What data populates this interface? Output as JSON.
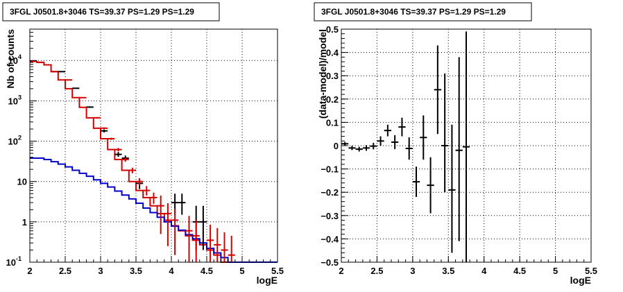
{
  "chart_data": [
    {
      "type": "line",
      "title": "3FGL J0501.8+3046 TS=39.37 PS=1.29 PS=1.29",
      "xlabel": "logE",
      "ylabel": "Nb of counts",
      "xlim": [
        2,
        5.5
      ],
      "ylim": [
        0.1,
        60000
      ],
      "yscale": "log",
      "grid": true,
      "x_ticks": [
        "2",
        "2.5",
        "3",
        "3.5",
        "4",
        "4.5",
        "5",
        "5.5"
      ],
      "y_ticks": [
        {
          "base": "10",
          "exp": "-1"
        },
        {
          "base": "1",
          "exp": ""
        },
        {
          "base": "10",
          "exp": ""
        },
        {
          "base": "10",
          "exp": "2"
        },
        {
          "base": "10",
          "exp": "3"
        },
        {
          "base": "10",
          "exp": "4"
        }
      ],
      "bin_edges": [
        2,
        2.1,
        2.2,
        2.3,
        2.4,
        2.5,
        2.6,
        2.7,
        2.8,
        2.9,
        3,
        3.1,
        3.2,
        3.3,
        3.4,
        3.5,
        3.6,
        3.7,
        3.8,
        3.9,
        4,
        4.1,
        4.2,
        4.3,
        4.4,
        4.5,
        4.6,
        4.7,
        4.8,
        4.9,
        5,
        5.1,
        5.2,
        5.3,
        5.4,
        5.5
      ],
      "series": [
        {
          "kind": "histogram",
          "color": "#d40000",
          "values": [
            9500,
            9000,
            7800,
            5300,
            3300,
            2000,
            1200,
            690,
            380,
            210,
            115,
            62,
            35,
            19,
            10,
            6,
            4,
            2.5,
            1.6,
            1.1,
            0.8,
            0.6,
            0.45,
            0.35,
            0.27,
            0.2,
            0.15,
            0.1,
            0.1,
            0.1,
            0.1,
            0.1,
            0.1,
            0.1,
            0.1
          ]
        },
        {
          "kind": "histogram",
          "color": "#0000cc",
          "values": [
            38,
            38,
            35,
            31,
            27,
            23,
            19,
            16,
            13.5,
            11,
            9,
            7.3,
            5.8,
            4.6,
            3.7,
            2.9,
            2.2,
            1.7,
            1.3,
            1,
            0.78,
            0.62,
            0.48,
            0.38,
            0.3,
            0.22,
            0.17,
            0.13,
            0.1,
            0.1,
            0.1,
            0.1,
            0.1,
            0.1,
            0.1
          ]
        },
        {
          "kind": "errorbars",
          "color": "#000000",
          "points": [
            {
              "x": 2.45,
              "y": 5300,
              "lo": 5200,
              "hi": 5400
            },
            {
              "x": 2.65,
              "y": 2050,
              "lo": 2000,
              "hi": 2100
            },
            {
              "x": 2.85,
              "y": 700,
              "lo": 670,
              "hi": 730
            },
            {
              "x": 3.05,
              "y": 180,
              "lo": 165,
              "hi": 195
            },
            {
              "x": 3.25,
              "y": 47,
              "lo": 41,
              "hi": 54
            },
            {
              "x": 3.35,
              "y": 38,
              "lo": 33,
              "hi": 44
            },
            {
              "x": 3.55,
              "y": 9,
              "lo": 6.5,
              "hi": 12
            },
            {
              "x": 4.05,
              "y": 3,
              "lo": 1.5,
              "hi": 5
            },
            {
              "x": 4.15,
              "y": 3,
              "lo": 1.5,
              "hi": 5
            },
            {
              "x": 4.35,
              "y": 1,
              "lo": 0.2,
              "hi": 2.5
            },
            {
              "x": 4.45,
              "y": 1,
              "lo": 0.2,
              "hi": 2.5
            }
          ]
        },
        {
          "kind": "errorbars",
          "color": "#d40000",
          "points": [
            {
              "x": 2.05,
              "y": 9500,
              "lo": 9400,
              "hi": 9600
            },
            {
              "x": 2.15,
              "y": 9000,
              "lo": 8900,
              "hi": 9100
            },
            {
              "x": 2.25,
              "y": 7800,
              "lo": 7700,
              "hi": 7900
            },
            {
              "x": 2.35,
              "y": 5300,
              "lo": 5200,
              "hi": 5400
            },
            {
              "x": 2.55,
              "y": 3300,
              "lo": 3250,
              "hi": 3350
            },
            {
              "x": 2.75,
              "y": 1200,
              "lo": 1170,
              "hi": 1230
            },
            {
              "x": 2.95,
              "y": 380,
              "lo": 365,
              "hi": 395
            },
            {
              "x": 3.05,
              "y": 210,
              "lo": 200,
              "hi": 220
            },
            {
              "x": 3.15,
              "y": 115,
              "lo": 108,
              "hi": 122
            },
            {
              "x": 3.25,
              "y": 62,
              "lo": 56,
              "hi": 68
            },
            {
              "x": 3.35,
              "y": 35,
              "lo": 31,
              "hi": 39
            },
            {
              "x": 3.45,
              "y": 19,
              "lo": 16,
              "hi": 22
            },
            {
              "x": 3.55,
              "y": 10,
              "lo": 8,
              "hi": 12
            },
            {
              "x": 3.65,
              "y": 6,
              "lo": 4.5,
              "hi": 7.7
            },
            {
              "x": 3.75,
              "y": 4,
              "lo": 2.8,
              "hi": 5.3
            },
            {
              "x": 3.85,
              "y": 2.5,
              "lo": 0.5,
              "hi": 4.5
            },
            {
              "x": 3.95,
              "y": 1.6,
              "lo": 0.25,
              "hi": 2.9
            },
            {
              "x": 4.05,
              "y": 1.1,
              "lo": 0.15,
              "hi": 2.1
            },
            {
              "x": 4.25,
              "y": 0.6,
              "lo": 0.1,
              "hi": 1.4
            },
            {
              "x": 4.35,
              "y": 0.45,
              "lo": 0.1,
              "hi": 1.1
            },
            {
              "x": 4.55,
              "y": 0.35,
              "lo": 0.1,
              "hi": 0.85
            },
            {
              "x": 4.65,
              "y": 0.27,
              "lo": 0.1,
              "hi": 0.7
            },
            {
              "x": 4.75,
              "y": 0.2,
              "lo": 0.1,
              "hi": 0.55
            },
            {
              "x": 4.85,
              "y": 0.15,
              "lo": 0.1,
              "hi": 0.45
            }
          ]
        }
      ]
    },
    {
      "type": "scatter",
      "title": "3FGL J0501.8+3046 TS=39.37 PS=1.29 PS=1.29",
      "xlabel": "logE",
      "ylabel": "(data-model)/model",
      "xlim": [
        2,
        5.5
      ],
      "ylim": [
        -0.5,
        0.5
      ],
      "grid": true,
      "x_ticks": [
        "2",
        "2.5",
        "3",
        "3.5",
        "4",
        "4.5",
        "5",
        "5.5"
      ],
      "y_ticks": [
        "−0.5",
        "−0.4",
        "−0.3",
        "−0.2",
        "−0.1",
        "0",
        "0.1",
        "0.2",
        "0.3",
        "0.4",
        "0.5"
      ],
      "series": [
        {
          "kind": "errorbars",
          "color": "#000000",
          "points": [
            {
              "x": 2.05,
              "y": 0.008,
              "lo": 0.0,
              "hi": 0.016
            },
            {
              "x": 2.15,
              "y": -0.01,
              "lo": -0.019,
              "hi": -0.001
            },
            {
              "x": 2.25,
              "y": -0.015,
              "lo": -0.025,
              "hi": -0.005
            },
            {
              "x": 2.35,
              "y": -0.01,
              "lo": -0.022,
              "hi": 0.002
            },
            {
              "x": 2.45,
              "y": -0.002,
              "lo": -0.016,
              "hi": 0.012
            },
            {
              "x": 2.55,
              "y": 0.02,
              "lo": 0.0,
              "hi": 0.04
            },
            {
              "x": 2.65,
              "y": 0.065,
              "lo": 0.04,
              "hi": 0.09
            },
            {
              "x": 2.75,
              "y": 0.015,
              "lo": -0.015,
              "hi": 0.045
            },
            {
              "x": 2.85,
              "y": 0.08,
              "lo": 0.04,
              "hi": 0.12
            },
            {
              "x": 2.95,
              "y": -0.012,
              "lo": -0.06,
              "hi": 0.036
            },
            {
              "x": 3.05,
              "y": -0.155,
              "lo": -0.22,
              "hi": -0.09
            },
            {
              "x": 3.15,
              "y": 0.035,
              "lo": -0.06,
              "hi": 0.13
            },
            {
              "x": 3.25,
              "y": -0.17,
              "lo": -0.29,
              "hi": -0.05
            },
            {
              "x": 3.35,
              "y": 0.24,
              "lo": 0.05,
              "hi": 0.43
            },
            {
              "x": 3.45,
              "y": 0.0,
              "lo": -0.2,
              "hi": 0.31
            },
            {
              "x": 3.55,
              "y": -0.19,
              "lo": -0.46,
              "hi": 0.09
            },
            {
              "x": 3.65,
              "y": -0.02,
              "lo": -0.41,
              "hi": 0.38
            },
            {
              "x": 3.75,
              "y": -0.005,
              "lo": -0.5,
              "hi": 0.49
            }
          ]
        }
      ]
    }
  ]
}
